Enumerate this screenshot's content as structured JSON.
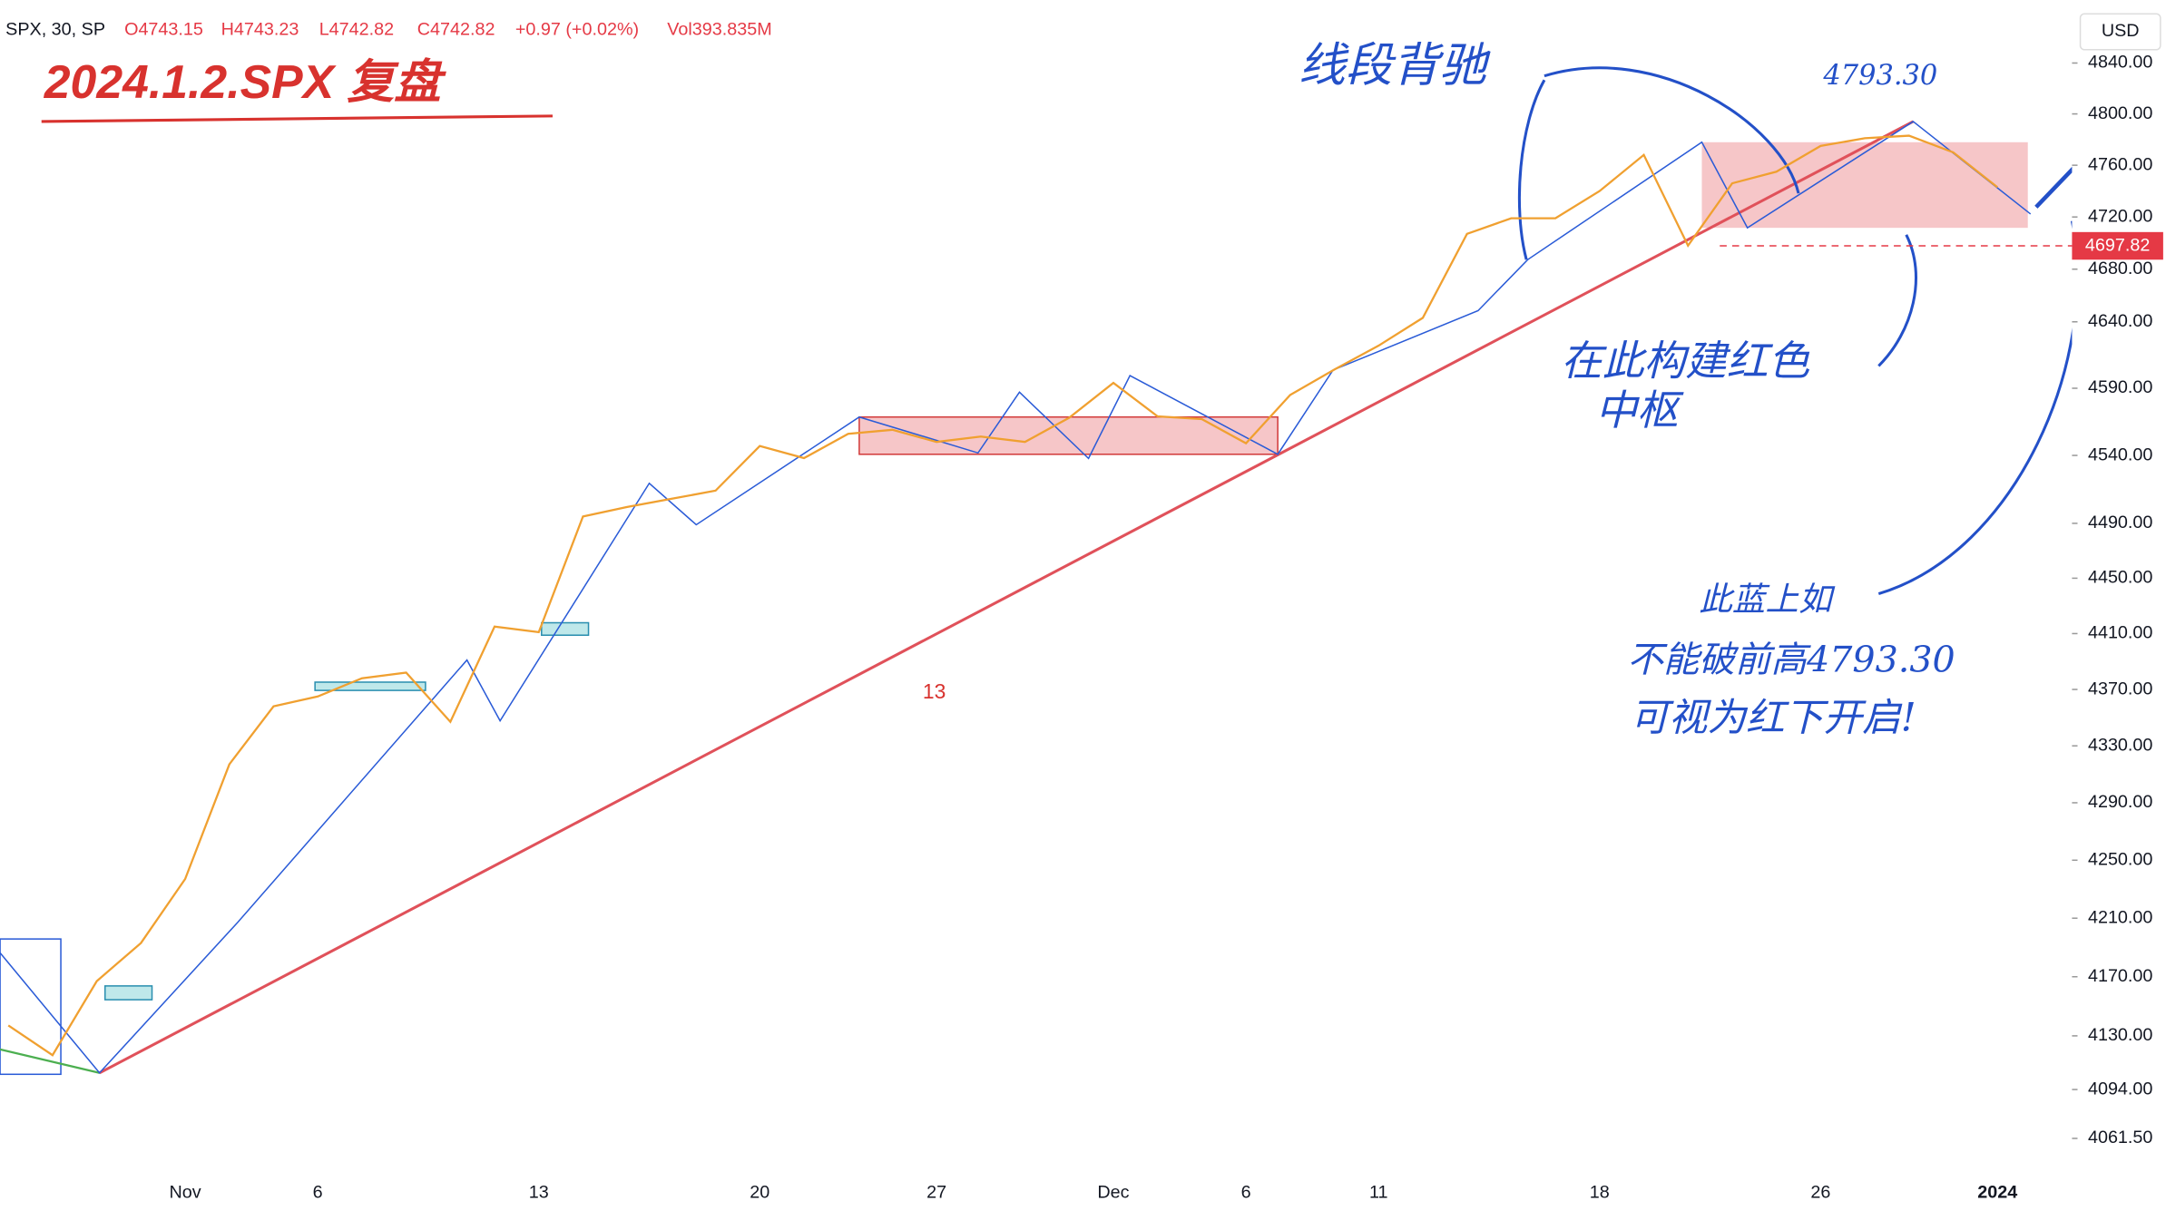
{
  "header": {
    "symbol": "SPX, 30, SP",
    "open": "O4743.15",
    "high": "H4743.23",
    "low": "L4742.82",
    "close": "C4742.82",
    "change": "+0.97 (+0.02%)",
    "volume": "Vol393.835M",
    "currency": "USD"
  },
  "chart_data": {
    "type": "line",
    "title": "2024.1.2.SPX 复盘",
    "categories": [
      null,
      null,
      null,
      null,
      "Nov",
      null,
      null,
      "6",
      null,
      null,
      null,
      null,
      "13",
      null,
      null,
      null,
      null,
      "20",
      null,
      null,
      null,
      "27",
      null,
      null,
      null,
      "Dec",
      null,
      null,
      "6",
      null,
      null,
      "11",
      null,
      null,
      null,
      null,
      "18",
      null,
      null,
      null,
      null,
      "26",
      null,
      null,
      null,
      "2024"
    ],
    "values": [
      4137,
      4117,
      4167,
      4193,
      4237,
      4317,
      4358,
      4365,
      4378,
      4382,
      4347,
      4415,
      4411,
      4495,
      4502,
      4508,
      4514,
      4547,
      4538,
      4556,
      4559,
      4550,
      4554,
      4550,
      4568,
      4594,
      4569,
      4567,
      4549,
      4585,
      4604,
      4622,
      4643,
      4707,
      4719,
      4719,
      4740,
      4768,
      4698,
      4746,
      4755,
      4775,
      4781,
      4783,
      4770,
      4743
    ],
    "color": "#f0a030",
    "log_scale": true,
    "grid": false,
    "ylim": [
      4040,
      4890
    ],
    "yticks": [
      {
        "value": 4840,
        "label": "4840.00"
      },
      {
        "value": 4800,
        "label": "4800.00"
      },
      {
        "value": 4760,
        "label": "4760.00"
      },
      {
        "value": 4720,
        "label": "4720.00"
      },
      {
        "value": 4680,
        "label": "4680.00"
      },
      {
        "value": 4640,
        "label": "4640.00"
      },
      {
        "value": 4590,
        "label": "4590.00"
      },
      {
        "value": 4540,
        "label": "4540.00"
      },
      {
        "value": 4490,
        "label": "4490.00"
      },
      {
        "value": 4450,
        "label": "4450.00"
      },
      {
        "value": 4410,
        "label": "4410.00"
      },
      {
        "value": 4370,
        "label": "4370.00"
      },
      {
        "value": 4330,
        "label": "4330.00"
      },
      {
        "value": 4290,
        "label": "4290.00"
      },
      {
        "value": 4250,
        "label": "4250.00"
      },
      {
        "value": 4210,
        "label": "4210.00"
      },
      {
        "value": 4170,
        "label": "4170.00"
      },
      {
        "value": 4130,
        "label": "4130.00"
      },
      {
        "value": 4094,
        "label": "4094.00"
      },
      {
        "value": 4061.5,
        "label": "4061.50"
      }
    ],
    "price_line": {
      "value": 4697.82,
      "label": "4697.82",
      "color": "#e53945"
    },
    "annotations": [
      "线段背驰",
      "4793.30",
      "在此构建红色",
      "中枢",
      "此蓝上如",
      "不能破前高4793.30",
      "可视为红下开启!",
      "13"
    ]
  }
}
